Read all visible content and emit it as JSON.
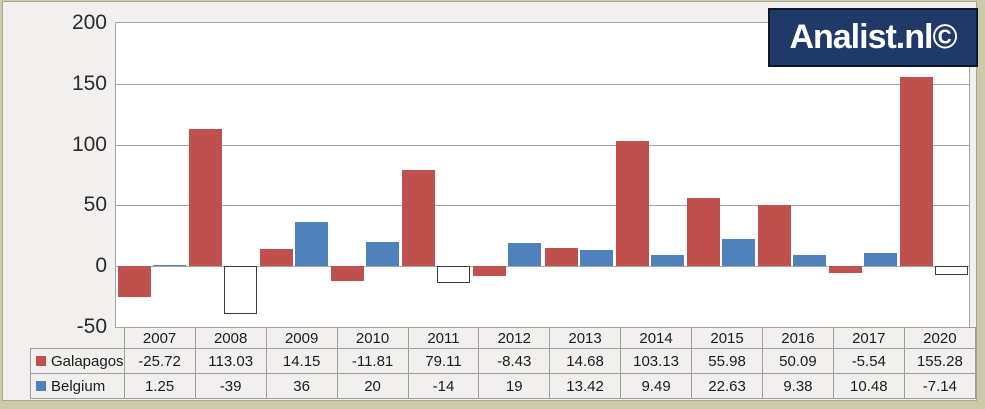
{
  "logo": {
    "text": "Analist.nl©"
  },
  "colors": {
    "frame": "#cdc9ab",
    "canvas_bg": "#f1f0ee",
    "plot_bg": "#ffffff",
    "gridline": "#a6a6a6",
    "table_border": "#9e9e9e",
    "text": "#1c1c1c",
    "logo_bg": "#1f3a68",
    "logo_text": "#ffffff",
    "galapagos_red": "#c0504d",
    "belgium_blue": "#4f81bd",
    "inverted_negative_fill": "#ffffff",
    "inverted_negative_border": "#3a3a3a"
  },
  "chart_data": {
    "type": "bar",
    "title": "",
    "categories": [
      "2007",
      "2008",
      "2009",
      "2010",
      "2011",
      "2012",
      "2013",
      "2014",
      "2015",
      "2016",
      "2017",
      "2020"
    ],
    "series": [
      {
        "name": "Galapagos",
        "color": "#c0504d",
        "invert_if_negative": false,
        "values": [
          -25.72,
          113.03,
          14.15,
          -11.81,
          79.11,
          -8.43,
          14.68,
          103.13,
          55.98,
          50.09,
          -5.54,
          155.28
        ]
      },
      {
        "name": "Belgium",
        "color": "#4f81bd",
        "invert_if_negative": true,
        "values": [
          1.25,
          -39,
          36,
          20,
          -14,
          19,
          13.42,
          9.49,
          22.63,
          9.38,
          10.48,
          -7.14
        ]
      }
    ],
    "ylim": [
      -50,
      200
    ],
    "yticks": [
      200,
      150,
      100,
      50,
      0,
      -50
    ],
    "grid": true,
    "legend_position": "data-table-left",
    "watermark": "Analist.nl©"
  }
}
